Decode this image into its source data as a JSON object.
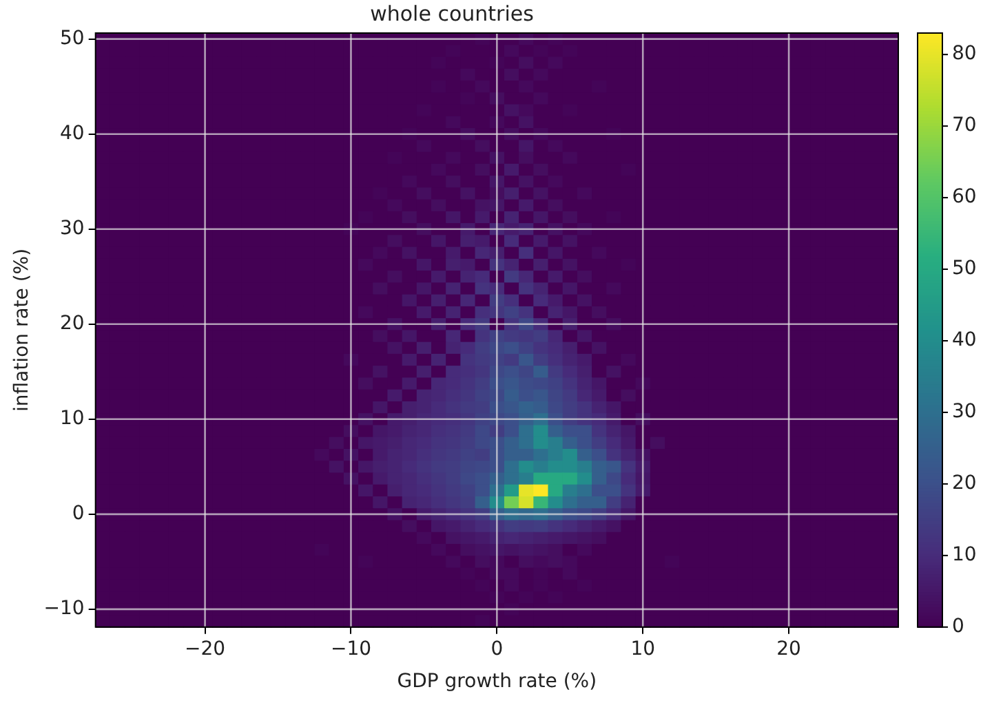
{
  "chart_data": {
    "type": "heatmap",
    "title": "whole countries",
    "xlabel": "GDP growth rate (%)",
    "ylabel": "inflation rate (%)",
    "grid": true,
    "clim": [
      0,
      83
    ],
    "cticks": [
      0,
      10,
      20,
      30,
      40,
      50,
      60,
      70,
      80
    ],
    "categories": [
      null,
      null,
      null,
      null,
      null,
      null,
      null,
      "−20",
      null,
      null,
      null,
      null,
      null,
      null,
      null,
      null,
      null,
      "−10",
      null,
      null,
      null,
      null,
      null,
      null,
      null,
      null,
      null,
      "0",
      null,
      null,
      null,
      null,
      null,
      null,
      null,
      null,
      null,
      "10",
      null,
      null,
      null,
      null,
      null,
      null,
      null,
      null,
      null,
      "20",
      null,
      null,
      null,
      null,
      null,
      null,
      null
    ],
    "y_categories": [
      "50",
      null,
      null,
      null,
      null,
      null,
      null,
      null,
      "40",
      null,
      null,
      null,
      null,
      null,
      null,
      null,
      "30",
      null,
      null,
      null,
      null,
      null,
      null,
      null,
      "20",
      null,
      null,
      null,
      null,
      null,
      null,
      null,
      "10",
      null,
      null,
      null,
      null,
      null,
      null,
      null,
      "0",
      null,
      null,
      null,
      null,
      null,
      null,
      null,
      "−10",
      null
    ],
    "cells": [
      [
        0,
        0,
        0,
        0,
        0,
        0,
        0,
        0,
        0,
        0,
        0,
        0,
        0,
        0,
        0,
        0,
        0,
        0,
        0,
        0,
        0,
        0,
        0,
        0,
        0,
        0,
        1,
        0,
        0,
        2,
        0,
        1,
        0,
        0,
        0,
        0,
        0,
        0,
        0,
        0,
        0,
        0,
        0,
        0,
        0,
        0,
        0,
        0,
        0,
        0,
        0,
        0,
        0,
        0,
        0
      ],
      [
        0,
        0,
        0,
        0,
        0,
        0,
        0,
        0,
        0,
        0,
        0,
        0,
        0,
        0,
        0,
        0,
        0,
        0,
        0,
        0,
        0,
        0,
        0,
        0,
        1,
        0,
        0,
        0,
        2,
        0,
        1,
        0,
        1,
        0,
        0,
        0,
        0,
        0,
        0,
        0,
        0,
        0,
        0,
        0,
        0,
        0,
        0,
        0,
        0,
        0,
        0,
        0,
        0,
        0,
        0
      ],
      [
        0,
        0,
        0,
        0,
        0,
        0,
        0,
        0,
        0,
        0,
        0,
        0,
        0,
        0,
        0,
        0,
        0,
        0,
        0,
        0,
        0,
        0,
        0,
        1,
        0,
        0,
        0,
        1,
        0,
        3,
        0,
        2,
        0,
        0,
        0,
        0,
        0,
        0,
        0,
        0,
        0,
        0,
        0,
        0,
        0,
        0,
        0,
        0,
        0,
        0,
        0,
        0,
        0,
        0,
        0
      ],
      [
        0,
        0,
        0,
        0,
        0,
        0,
        0,
        0,
        0,
        0,
        0,
        0,
        0,
        0,
        0,
        0,
        0,
        0,
        0,
        0,
        0,
        0,
        0,
        0,
        0,
        2,
        0,
        0,
        3,
        0,
        2,
        0,
        0,
        0,
        0,
        0,
        0,
        0,
        0,
        0,
        0,
        0,
        0,
        0,
        0,
        0,
        0,
        0,
        0,
        0,
        0,
        0,
        0,
        0,
        0
      ],
      [
        0,
        0,
        0,
        0,
        0,
        0,
        0,
        0,
        0,
        0,
        0,
        0,
        0,
        0,
        0,
        0,
        0,
        0,
        0,
        0,
        0,
        0,
        0,
        1,
        0,
        0,
        2,
        0,
        0,
        2,
        0,
        0,
        0,
        0,
        1,
        0,
        0,
        0,
        0,
        0,
        0,
        0,
        0,
        0,
        0,
        0,
        0,
        0,
        0,
        0,
        0,
        0,
        0,
        0,
        0
      ],
      [
        0,
        0,
        0,
        0,
        0,
        0,
        0,
        0,
        0,
        0,
        0,
        0,
        0,
        0,
        0,
        0,
        0,
        0,
        0,
        0,
        0,
        0,
        0,
        0,
        0,
        1,
        0,
        3,
        0,
        0,
        2,
        0,
        0,
        0,
        0,
        0,
        0,
        0,
        0,
        0,
        0,
        0,
        0,
        0,
        0,
        0,
        0,
        0,
        0,
        0,
        0,
        0,
        0,
        0,
        0
      ],
      [
        0,
        0,
        0,
        0,
        0,
        0,
        0,
        0,
        0,
        0,
        0,
        0,
        0,
        0,
        0,
        0,
        0,
        0,
        0,
        0,
        0,
        0,
        1,
        0,
        0,
        0,
        0,
        0,
        4,
        2,
        0,
        0,
        1,
        0,
        0,
        0,
        0,
        0,
        0,
        0,
        0,
        0,
        0,
        0,
        0,
        0,
        0,
        0,
        0,
        0,
        0,
        0,
        0,
        0,
        0
      ],
      [
        0,
        0,
        0,
        0,
        0,
        0,
        0,
        0,
        0,
        0,
        0,
        0,
        0,
        0,
        0,
        0,
        0,
        0,
        0,
        0,
        0,
        0,
        0,
        0,
        2,
        0,
        0,
        2,
        0,
        4,
        0,
        0,
        0,
        0,
        0,
        0,
        0,
        0,
        0,
        0,
        0,
        0,
        0,
        0,
        0,
        0,
        0,
        0,
        0,
        0,
        0,
        0,
        0,
        0,
        0
      ],
      [
        0,
        0,
        0,
        0,
        0,
        0,
        0,
        0,
        0,
        0,
        0,
        0,
        0,
        0,
        0,
        0,
        0,
        0,
        0,
        0,
        0,
        1,
        0,
        0,
        0,
        3,
        0,
        0,
        3,
        0,
        2,
        0,
        0,
        0,
        0,
        1,
        0,
        0,
        0,
        0,
        0,
        0,
        0,
        0,
        0,
        0,
        0,
        0,
        0,
        0,
        0,
        0,
        0,
        0,
        0
      ],
      [
        0,
        0,
        0,
        0,
        0,
        0,
        0,
        0,
        0,
        0,
        0,
        0,
        0,
        0,
        0,
        0,
        0,
        0,
        0,
        0,
        0,
        0,
        2,
        0,
        0,
        0,
        3,
        0,
        0,
        5,
        0,
        2,
        0,
        0,
        0,
        0,
        0,
        0,
        0,
        0,
        0,
        0,
        0,
        0,
        0,
        0,
        0,
        0,
        0,
        0,
        0,
        0,
        0,
        0,
        0
      ],
      [
        0,
        0,
        0,
        0,
        0,
        0,
        0,
        0,
        0,
        0,
        0,
        0,
        0,
        0,
        0,
        0,
        0,
        0,
        0,
        0,
        1,
        0,
        0,
        0,
        2,
        0,
        0,
        4,
        0,
        3,
        0,
        0,
        2,
        0,
        0,
        0,
        0,
        0,
        0,
        0,
        0,
        0,
        0,
        0,
        0,
        0,
        0,
        0,
        0,
        0,
        0,
        0,
        0,
        0,
        0
      ],
      [
        0,
        0,
        0,
        0,
        0,
        0,
        0,
        0,
        0,
        0,
        0,
        0,
        0,
        0,
        0,
        0,
        0,
        0,
        0,
        0,
        0,
        0,
        0,
        2,
        0,
        0,
        3,
        0,
        6,
        0,
        3,
        0,
        0,
        0,
        0,
        0,
        1,
        0,
        0,
        0,
        0,
        0,
        0,
        0,
        0,
        0,
        0,
        0,
        0,
        0,
        0,
        0,
        0,
        0,
        0
      ],
      [
        0,
        0,
        0,
        0,
        0,
        0,
        0,
        0,
        0,
        0,
        0,
        0,
        0,
        0,
        0,
        0,
        0,
        0,
        0,
        0,
        0,
        2,
        0,
        0,
        3,
        0,
        0,
        5,
        0,
        4,
        0,
        2,
        0,
        0,
        0,
        0,
        0,
        0,
        0,
        0,
        0,
        0,
        0,
        0,
        0,
        0,
        0,
        0,
        0,
        0,
        0,
        0,
        0,
        0,
        0
      ],
      [
        0,
        0,
        0,
        0,
        0,
        0,
        0,
        0,
        0,
        0,
        0,
        0,
        0,
        0,
        0,
        0,
        0,
        0,
        0,
        1,
        0,
        0,
        3,
        0,
        0,
        4,
        0,
        3,
        7,
        0,
        4,
        0,
        0,
        2,
        0,
        0,
        0,
        0,
        0,
        0,
        0,
        0,
        0,
        0,
        0,
        0,
        0,
        0,
        0,
        0,
        0,
        0,
        0,
        0,
        0
      ],
      [
        0,
        0,
        0,
        0,
        0,
        0,
        0,
        0,
        0,
        0,
        0,
        0,
        0,
        0,
        0,
        0,
        0,
        0,
        0,
        0,
        2,
        0,
        0,
        3,
        0,
        0,
        4,
        5,
        0,
        6,
        0,
        3,
        0,
        0,
        0,
        0,
        0,
        0,
        0,
        0,
        0,
        0,
        0,
        0,
        0,
        0,
        0,
        0,
        0,
        0,
        0,
        0,
        0,
        0,
        0
      ],
      [
        0,
        0,
        0,
        0,
        0,
        0,
        0,
        0,
        0,
        0,
        0,
        0,
        0,
        0,
        0,
        0,
        0,
        0,
        1,
        0,
        0,
        3,
        0,
        0,
        5,
        0,
        6,
        0,
        8,
        0,
        5,
        0,
        3,
        0,
        0,
        1,
        0,
        0,
        0,
        0,
        0,
        0,
        0,
        0,
        0,
        0,
        0,
        0,
        0,
        0,
        0,
        0,
        0,
        0,
        0
      ],
      [
        0,
        0,
        0,
        0,
        0,
        0,
        0,
        0,
        0,
        0,
        0,
        0,
        0,
        0,
        0,
        0,
        0,
        1,
        0,
        0,
        0,
        0,
        3,
        0,
        0,
        6,
        0,
        9,
        6,
        8,
        0,
        4,
        0,
        2,
        0,
        0,
        0,
        0,
        0,
        0,
        0,
        0,
        0,
        0,
        0,
        0,
        0,
        0,
        0,
        0,
        0,
        0,
        0,
        0,
        0
      ],
      [
        0,
        0,
        0,
        0,
        0,
        0,
        0,
        0,
        0,
        0,
        0,
        0,
        0,
        0,
        0,
        0,
        0,
        0,
        0,
        0,
        3,
        0,
        0,
        5,
        0,
        7,
        6,
        0,
        10,
        0,
        6,
        0,
        4,
        0,
        0,
        0,
        0,
        0,
        0,
        0,
        0,
        0,
        0,
        0,
        0,
        0,
        0,
        0,
        0,
        0,
        0,
        0,
        0,
        0,
        0
      ],
      [
        0,
        0,
        0,
        0,
        0,
        0,
        0,
        0,
        0,
        0,
        0,
        0,
        0,
        0,
        0,
        0,
        0,
        0,
        0,
        2,
        0,
        4,
        0,
        0,
        6,
        0,
        9,
        7,
        0,
        11,
        0,
        5,
        0,
        0,
        2,
        0,
        0,
        0,
        0,
        0,
        0,
        0,
        0,
        0,
        0,
        0,
        0,
        0,
        0,
        0,
        0,
        0,
        0,
        0,
        0
      ],
      [
        0,
        0,
        0,
        0,
        0,
        0,
        0,
        0,
        0,
        0,
        0,
        0,
        0,
        0,
        0,
        0,
        0,
        0,
        2,
        0,
        0,
        0,
        5,
        0,
        7,
        6,
        0,
        12,
        8,
        0,
        7,
        0,
        4,
        0,
        0,
        0,
        1,
        0,
        0,
        0,
        0,
        0,
        0,
        0,
        0,
        0,
        0,
        0,
        0,
        0,
        0,
        0,
        0,
        0,
        0
      ],
      [
        0,
        0,
        0,
        0,
        0,
        0,
        0,
        0,
        0,
        0,
        0,
        0,
        0,
        0,
        0,
        0,
        0,
        0,
        0,
        0,
        3,
        0,
        0,
        6,
        0,
        8,
        10,
        0,
        14,
        9,
        0,
        6,
        0,
        3,
        0,
        0,
        0,
        0,
        0,
        0,
        0,
        0,
        0,
        0,
        0,
        0,
        0,
        0,
        0,
        0,
        0,
        0,
        0,
        0,
        0
      ],
      [
        0,
        0,
        0,
        0,
        0,
        0,
        0,
        0,
        0,
        0,
        0,
        0,
        0,
        0,
        0,
        0,
        0,
        0,
        0,
        3,
        0,
        0,
        5,
        0,
        8,
        0,
        12,
        10,
        0,
        12,
        8,
        0,
        5,
        0,
        0,
        2,
        0,
        0,
        0,
        0,
        0,
        0,
        0,
        0,
        0,
        0,
        0,
        0,
        0,
        0,
        0,
        0,
        0,
        0,
        0
      ],
      [
        0,
        0,
        0,
        0,
        0,
        0,
        0,
        0,
        0,
        0,
        0,
        0,
        0,
        0,
        0,
        0,
        0,
        0,
        0,
        0,
        0,
        5,
        0,
        7,
        0,
        9,
        0,
        15,
        11,
        0,
        10,
        6,
        0,
        4,
        0,
        0,
        0,
        0,
        0,
        0,
        0,
        0,
        0,
        0,
        0,
        0,
        0,
        0,
        0,
        0,
        0,
        0,
        0,
        0,
        0
      ],
      [
        0,
        0,
        0,
        0,
        0,
        0,
        0,
        0,
        0,
        0,
        0,
        0,
        0,
        0,
        0,
        0,
        0,
        0,
        2,
        0,
        0,
        0,
        6,
        0,
        8,
        0,
        11,
        13,
        16,
        12,
        0,
        8,
        5,
        0,
        3,
        0,
        0,
        0,
        0,
        0,
        0,
        0,
        0,
        0,
        0,
        0,
        0,
        0,
        0,
        0,
        0,
        0,
        0,
        0,
        0
      ],
      [
        0,
        0,
        0,
        0,
        0,
        0,
        0,
        0,
        0,
        0,
        0,
        0,
        0,
        0,
        0,
        0,
        0,
        0,
        0,
        0,
        4,
        0,
        0,
        7,
        0,
        10,
        14,
        0,
        12,
        18,
        10,
        0,
        7,
        0,
        0,
        3,
        0,
        0,
        0,
        0,
        0,
        0,
        0,
        0,
        0,
        0,
        0,
        0,
        0,
        0,
        0,
        0,
        0,
        0,
        0
      ],
      [
        0,
        0,
        0,
        0,
        0,
        0,
        0,
        0,
        0,
        0,
        0,
        0,
        0,
        0,
        0,
        0,
        0,
        0,
        0,
        3,
        0,
        5,
        0,
        0,
        9,
        0,
        12,
        16,
        14,
        13,
        15,
        9,
        0,
        5,
        0,
        0,
        0,
        0,
        0,
        0,
        0,
        0,
        0,
        0,
        0,
        0,
        0,
        0,
        0,
        0,
        0,
        0,
        0,
        0,
        0
      ],
      [
        0,
        0,
        0,
        0,
        0,
        0,
        0,
        0,
        0,
        0,
        0,
        0,
        0,
        0,
        0,
        0,
        0,
        0,
        0,
        0,
        4,
        0,
        7,
        0,
        8,
        10,
        15,
        18,
        20,
        16,
        12,
        10,
        7,
        0,
        4,
        0,
        0,
        0,
        0,
        0,
        0,
        0,
        0,
        0,
        0,
        0,
        0,
        0,
        0,
        0,
        0,
        0,
        0,
        0,
        0
      ],
      [
        0,
        0,
        0,
        0,
        0,
        0,
        0,
        0,
        0,
        0,
        0,
        0,
        0,
        0,
        0,
        0,
        0,
        2,
        0,
        0,
        0,
        6,
        0,
        8,
        0,
        12,
        14,
        16,
        14,
        22,
        15,
        11,
        8,
        6,
        0,
        0,
        2,
        0,
        0,
        0,
        0,
        0,
        0,
        0,
        0,
        0,
        0,
        0,
        0,
        0,
        0,
        0,
        0,
        0,
        0
      ],
      [
        0,
        0,
        0,
        0,
        0,
        0,
        0,
        0,
        0,
        0,
        0,
        0,
        0,
        0,
        0,
        0,
        0,
        0,
        0,
        4,
        0,
        0,
        7,
        0,
        10,
        11,
        13,
        18,
        20,
        17,
        24,
        14,
        10,
        7,
        0,
        4,
        0,
        0,
        0,
        0,
        0,
        0,
        0,
        0,
        0,
        0,
        0,
        0,
        0,
        0,
        0,
        0,
        0,
        0,
        0
      ],
      [
        0,
        0,
        0,
        0,
        0,
        0,
        0,
        0,
        0,
        0,
        0,
        0,
        0,
        0,
        0,
        0,
        0,
        0,
        3,
        0,
        0,
        6,
        0,
        9,
        10,
        12,
        15,
        20,
        22,
        19,
        18,
        16,
        12,
        8,
        5,
        0,
        0,
        2,
        0,
        0,
        0,
        0,
        0,
        0,
        0,
        0,
        0,
        0,
        0,
        0,
        0,
        0,
        0,
        0,
        0
      ],
      [
        0,
        0,
        0,
        0,
        0,
        0,
        0,
        0,
        0,
        0,
        0,
        0,
        0,
        0,
        0,
        0,
        0,
        0,
        0,
        0,
        6,
        0,
        8,
        9,
        11,
        13,
        16,
        18,
        24,
        20,
        22,
        17,
        14,
        9,
        6,
        0,
        3,
        0,
        0,
        0,
        0,
        0,
        0,
        0,
        0,
        0,
        0,
        0,
        0,
        0,
        0,
        0,
        0,
        0,
        0
      ],
      [
        0,
        0,
        0,
        0,
        0,
        0,
        0,
        0,
        0,
        0,
        0,
        0,
        0,
        0,
        0,
        0,
        0,
        0,
        0,
        5,
        0,
        7,
        8,
        10,
        12,
        14,
        15,
        20,
        22,
        26,
        24,
        18,
        15,
        12,
        8,
        5,
        0,
        0,
        0,
        0,
        0,
        0,
        0,
        0,
        0,
        0,
        0,
        0,
        0,
        0,
        0,
        0,
        0,
        0,
        0
      ],
      [
        0,
        0,
        0,
        0,
        0,
        0,
        0,
        0,
        0,
        0,
        0,
        0,
        0,
        0,
        0,
        0,
        0,
        0,
        4,
        0,
        6,
        7,
        9,
        10,
        11,
        13,
        16,
        18,
        20,
        25,
        30,
        20,
        15,
        12,
        10,
        6,
        0,
        3,
        0,
        0,
        0,
        0,
        0,
        0,
        0,
        0,
        0,
        0,
        0,
        0,
        0,
        0,
        0,
        0,
        0
      ],
      [
        0,
        0,
        0,
        0,
        0,
        0,
        0,
        0,
        0,
        0,
        0,
        0,
        0,
        0,
        0,
        0,
        0,
        3,
        0,
        5,
        6,
        8,
        9,
        11,
        12,
        14,
        18,
        15,
        20,
        30,
        40,
        25,
        20,
        20,
        12,
        8,
        5,
        0,
        0,
        0,
        0,
        0,
        0,
        0,
        0,
        0,
        0,
        0,
        0,
        0,
        0,
        0,
        0,
        0,
        0
      ],
      [
        0,
        0,
        0,
        0,
        0,
        0,
        0,
        0,
        0,
        0,
        0,
        0,
        0,
        0,
        0,
        0,
        3,
        0,
        5,
        6,
        7,
        9,
        10,
        12,
        13,
        15,
        18,
        20,
        25,
        30,
        40,
        35,
        25,
        20,
        15,
        10,
        6,
        0,
        3,
        0,
        0,
        0,
        0,
        0,
        0,
        0,
        0,
        0,
        0,
        0,
        0,
        0,
        0,
        0,
        0
      ],
      [
        0,
        0,
        0,
        0,
        0,
        0,
        0,
        0,
        0,
        0,
        0,
        0,
        0,
        0,
        0,
        2,
        0,
        4,
        0,
        6,
        8,
        9,
        11,
        13,
        14,
        16,
        15,
        20,
        25,
        25,
        30,
        35,
        40,
        25,
        20,
        12,
        8,
        4,
        0,
        0,
        0,
        0,
        0,
        0,
        0,
        0,
        0,
        0,
        0,
        0,
        0,
        0,
        0,
        0,
        0
      ],
      [
        0,
        0,
        0,
        0,
        0,
        0,
        0,
        0,
        0,
        0,
        0,
        0,
        0,
        0,
        0,
        0,
        4,
        0,
        5,
        7,
        8,
        10,
        12,
        14,
        15,
        17,
        18,
        20,
        30,
        40,
        35,
        40,
        40,
        35,
        25,
        22,
        12,
        6,
        0,
        0,
        0,
        0,
        0,
        0,
        0,
        0,
        0,
        0,
        0,
        0,
        0,
        0,
        0,
        0,
        0
      ],
      [
        0,
        0,
        0,
        0,
        0,
        0,
        0,
        0,
        0,
        0,
        0,
        0,
        0,
        0,
        0,
        0,
        0,
        4,
        0,
        6,
        8,
        9,
        11,
        13,
        15,
        18,
        20,
        25,
        30,
        35,
        50,
        50,
        50,
        40,
        25,
        18,
        10,
        5,
        0,
        0,
        0,
        0,
        0,
        0,
        0,
        0,
        0,
        0,
        0,
        0,
        0,
        0,
        0,
        0,
        0
      ],
      [
        0,
        0,
        0,
        0,
        0,
        0,
        0,
        0,
        0,
        0,
        0,
        0,
        0,
        0,
        0,
        0,
        0,
        0,
        5,
        0,
        7,
        9,
        10,
        12,
        14,
        16,
        20,
        30,
        45,
        80,
        83,
        50,
        35,
        30,
        20,
        20,
        12,
        6,
        0,
        0,
        0,
        0,
        0,
        0,
        0,
        0,
        0,
        0,
        0,
        0,
        0,
        0,
        0,
        0,
        0
      ],
      [
        0,
        0,
        0,
        0,
        0,
        0,
        0,
        0,
        0,
        0,
        0,
        0,
        0,
        0,
        0,
        0,
        0,
        0,
        0,
        5,
        0,
        8,
        9,
        11,
        13,
        15,
        25,
        40,
        65,
        78,
        55,
        40,
        30,
        25,
        25,
        15,
        8,
        0,
        0,
        0,
        0,
        0,
        0,
        0,
        0,
        0,
        0,
        0,
        0,
        0,
        0,
        0,
        0,
        0,
        0
      ],
      [
        0,
        0,
        0,
        0,
        0,
        0,
        0,
        0,
        0,
        0,
        0,
        0,
        0,
        0,
        0,
        0,
        0,
        0,
        0,
        0,
        4,
        0,
        6,
        8,
        10,
        12,
        15,
        25,
        30,
        28,
        30,
        25,
        20,
        18,
        15,
        10,
        5,
        0,
        0,
        0,
        0,
        0,
        0,
        0,
        0,
        0,
        0,
        0,
        0,
        0,
        0,
        0,
        0,
        0,
        0
      ],
      [
        0,
        0,
        0,
        0,
        0,
        0,
        0,
        0,
        0,
        0,
        0,
        0,
        0,
        0,
        0,
        0,
        0,
        0,
        0,
        0,
        0,
        3,
        0,
        5,
        6,
        8,
        10,
        12,
        15,
        14,
        15,
        12,
        10,
        8,
        6,
        4,
        0,
        0,
        0,
        0,
        0,
        0,
        0,
        0,
        0,
        0,
        0,
        0,
        0,
        0,
        0,
        0,
        0,
        0,
        0
      ],
      [
        0,
        0,
        0,
        0,
        0,
        0,
        0,
        0,
        0,
        0,
        0,
        0,
        0,
        0,
        0,
        0,
        0,
        0,
        0,
        0,
        0,
        0,
        2,
        0,
        4,
        5,
        6,
        8,
        9,
        8,
        7,
        6,
        5,
        4,
        3,
        0,
        0,
        0,
        0,
        0,
        0,
        0,
        0,
        0,
        0,
        0,
        0,
        0,
        0,
        0,
        0,
        0,
        0,
        0,
        0
      ],
      [
        0,
        0,
        0,
        0,
        0,
        0,
        0,
        0,
        0,
        0,
        0,
        0,
        0,
        0,
        0,
        1,
        0,
        0,
        0,
        0,
        0,
        0,
        0,
        2,
        0,
        3,
        4,
        5,
        4,
        5,
        4,
        3,
        0,
        2,
        0,
        0,
        0,
        0,
        0,
        0,
        0,
        0,
        0,
        0,
        0,
        0,
        0,
        0,
        0,
        0,
        0,
        0,
        0,
        0,
        0
      ],
      [
        0,
        0,
        0,
        0,
        0,
        0,
        0,
        0,
        0,
        0,
        0,
        0,
        0,
        0,
        0,
        0,
        0,
        0,
        1,
        0,
        0,
        0,
        0,
        0,
        2,
        0,
        3,
        2,
        0,
        3,
        2,
        3,
        2,
        0,
        0,
        0,
        0,
        0,
        0,
        1,
        0,
        0,
        0,
        0,
        0,
        0,
        0,
        0,
        0,
        0,
        0,
        0,
        0,
        0,
        0
      ],
      [
        0,
        0,
        0,
        0,
        0,
        0,
        0,
        0,
        0,
        0,
        0,
        0,
        0,
        0,
        0,
        0,
        0,
        0,
        0,
        0,
        0,
        0,
        0,
        0,
        0,
        1,
        0,
        2,
        2,
        0,
        1,
        0,
        2,
        0,
        0,
        0,
        0,
        0,
        0,
        0,
        0,
        0,
        0,
        0,
        0,
        0,
        0,
        0,
        0,
        0,
        0,
        0,
        0,
        0,
        0
      ],
      [
        0,
        0,
        0,
        0,
        0,
        0,
        0,
        0,
        0,
        0,
        0,
        0,
        0,
        0,
        0,
        0,
        0,
        0,
        0,
        0,
        0,
        0,
        0,
        0,
        0,
        0,
        1,
        0,
        2,
        0,
        1,
        0,
        0,
        1,
        0,
        0,
        0,
        0,
        0,
        0,
        0,
        0,
        0,
        0,
        0,
        0,
        0,
        0,
        0,
        0,
        0,
        0,
        0,
        0,
        0
      ],
      [
        0,
        0,
        0,
        0,
        0,
        0,
        0,
        0,
        0,
        0,
        0,
        0,
        0,
        0,
        0,
        0,
        0,
        0,
        0,
        0,
        0,
        0,
        0,
        0,
        0,
        0,
        0,
        1,
        0,
        1,
        0,
        1,
        0,
        0,
        0,
        0,
        0,
        0,
        0,
        0,
        0,
        0,
        0,
        0,
        0,
        0,
        0,
        0,
        0,
        0,
        0,
        0,
        0,
        0,
        0
      ],
      [
        0,
        0,
        0,
        0,
        0,
        0,
        0,
        0,
        0,
        0,
        0,
        0,
        0,
        0,
        0,
        0,
        0,
        0,
        0,
        0,
        0,
        0,
        0,
        0,
        0,
        0,
        0,
        0,
        1,
        0,
        0,
        0,
        0,
        0,
        0,
        0,
        0,
        0,
        0,
        0,
        0,
        0,
        0,
        0,
        0,
        0,
        0,
        0,
        0,
        0,
        0,
        0,
        0,
        0,
        0
      ],
      [
        0,
        0,
        0,
        0,
        0,
        0,
        0,
        0,
        0,
        0,
        0,
        0,
        0,
        0,
        0,
        0,
        0,
        0,
        0,
        0,
        0,
        0,
        0,
        0,
        0,
        0,
        1,
        0,
        0,
        0,
        0,
        0,
        0,
        0,
        0,
        0,
        0,
        0,
        0,
        0,
        0,
        0,
        0,
        0,
        0,
        0,
        0,
        0,
        0,
        0,
        0,
        0,
        0,
        0,
        0
      ]
    ]
  }
}
